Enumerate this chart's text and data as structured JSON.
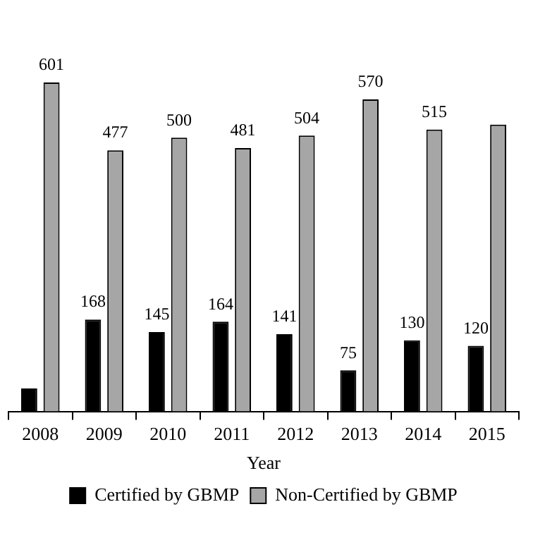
{
  "chart_data": {
    "type": "bar",
    "xlabel": "Year",
    "categories": [
      "2008",
      "2009",
      "2010",
      "2011",
      "2012",
      "2013",
      "2014",
      "2015"
    ],
    "series": [
      {
        "name": "Certified by GBMP",
        "color": "#000000",
        "values": [
          42,
          168,
          145,
          164,
          141,
          75,
          130,
          120
        ],
        "value_labels": [
          null,
          "168",
          "145",
          "164",
          "141",
          "75",
          "130",
          "120"
        ]
      },
      {
        "name": "Non-Certified by GBMP",
        "color": "#a6a6a6",
        "values": [
          601,
          477,
          500,
          481,
          504,
          570,
          515,
          524
        ],
        "value_labels": [
          "601",
          "477",
          "500",
          "481",
          "504",
          "570",
          "515",
          null
        ]
      }
    ],
    "legend": "bottom",
    "grid": false
  }
}
